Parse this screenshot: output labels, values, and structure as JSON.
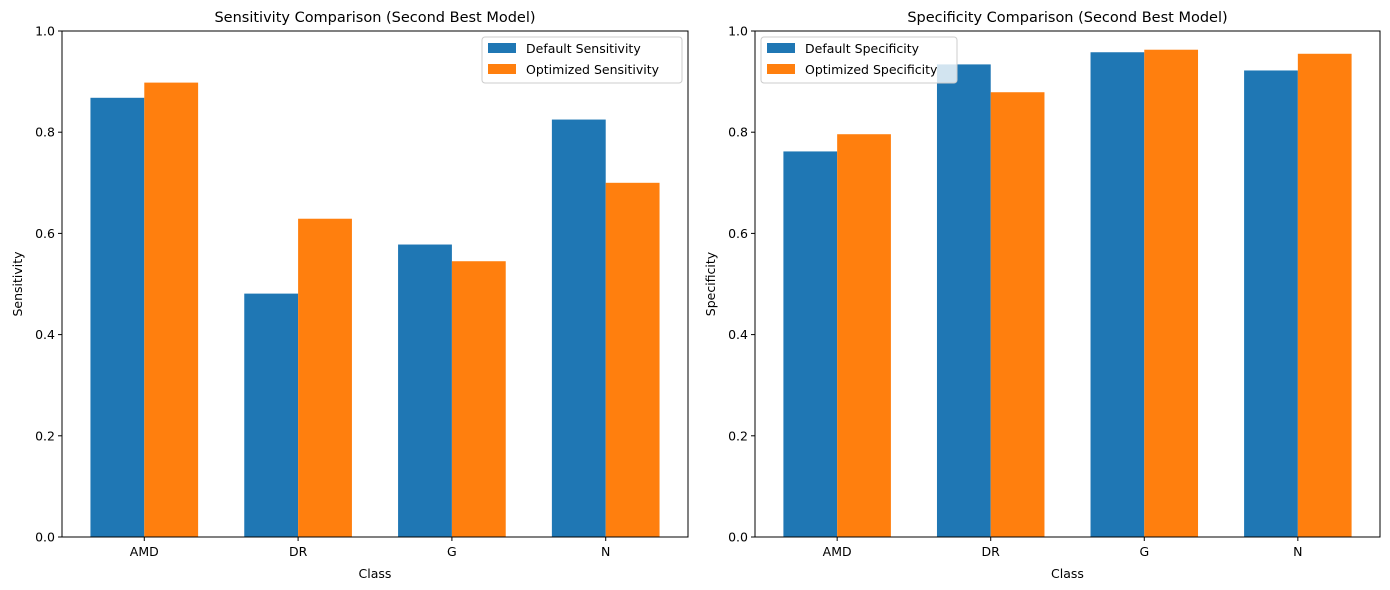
{
  "chart_data": [
    {
      "type": "bar",
      "title": "Sensitivity Comparison (Second Best Model)",
      "xlabel": "Class",
      "ylabel": "Sensitivity",
      "categories": [
        "AMD",
        "DR",
        "G",
        "N"
      ],
      "ylim": [
        0,
        1.0
      ],
      "yticks": [
        "0.0",
        "0.2",
        "0.4",
        "0.6",
        "0.8",
        "1.0"
      ],
      "grid": false,
      "legend_position": "top-right",
      "series": [
        {
          "name": "Default Sensitivity",
          "color": "#1f77b4",
          "values": [
            0.868,
            0.481,
            0.578,
            0.825
          ]
        },
        {
          "name": "Optimized Sensitivity",
          "color": "#ff7f0e",
          "values": [
            0.898,
            0.629,
            0.545,
            0.7
          ]
        }
      ]
    },
    {
      "type": "bar",
      "title": "Specificity Comparison (Second Best Model)",
      "xlabel": "Class",
      "ylabel": "Specificity",
      "categories": [
        "AMD",
        "DR",
        "G",
        "N"
      ],
      "ylim": [
        0,
        1.0
      ],
      "yticks": [
        "0.0",
        "0.2",
        "0.4",
        "0.6",
        "0.8",
        "1.0"
      ],
      "grid": false,
      "legend_position": "top-left",
      "series": [
        {
          "name": "Default Specificity",
          "color": "#1f77b4",
          "values": [
            0.762,
            0.934,
            0.958,
            0.922
          ]
        },
        {
          "name": "Optimized Specificity",
          "color": "#ff7f0e",
          "values": [
            0.796,
            0.879,
            0.963,
            0.955
          ]
        }
      ]
    }
  ]
}
